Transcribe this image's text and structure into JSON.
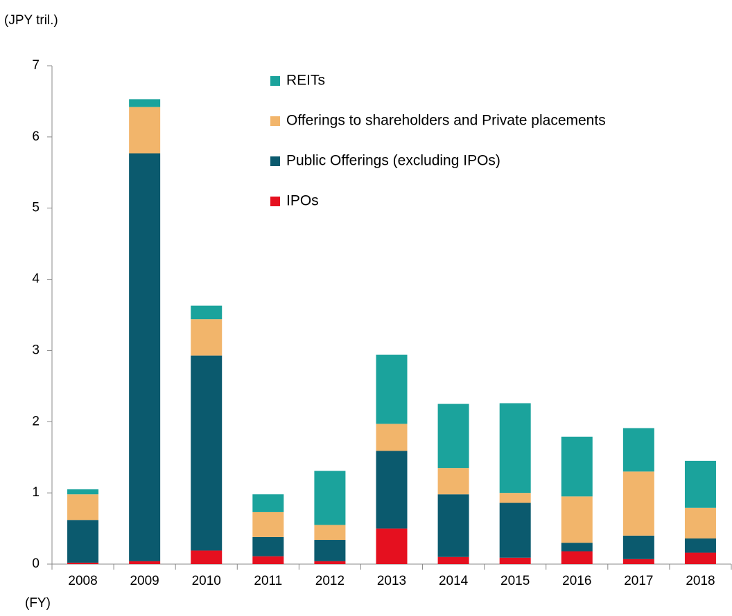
{
  "chart_data": {
    "type": "stacked_bar",
    "y_axis_label": "(JPY tril.)",
    "x_axis_label": "(FY)",
    "categories": [
      "2008",
      "2009",
      "2010",
      "2011",
      "2012",
      "2013",
      "2014",
      "2015",
      "2016",
      "2017",
      "2018"
    ],
    "series": [
      {
        "name": "REITs",
        "color": "#1ba39c",
        "values": [
          0.07,
          0.11,
          0.19,
          0.25,
          0.76,
          0.97,
          0.9,
          1.26,
          0.84,
          0.61,
          0.66
        ]
      },
      {
        "name": "Offerings to shareholders and Private placements",
        "color": "#f2b56b",
        "values": [
          0.36,
          0.65,
          0.51,
          0.35,
          0.21,
          0.38,
          0.37,
          0.14,
          0.65,
          0.9,
          0.43
        ]
      },
      {
        "name": "Public Offerings (excluding IPOs)",
        "color": "#0b5a6e",
        "values": [
          0.6,
          5.73,
          2.74,
          0.27,
          0.3,
          1.09,
          0.88,
          0.77,
          0.12,
          0.33,
          0.2
        ]
      },
      {
        "name": "IPOs",
        "color": "#e5101f",
        "values": [
          0.02,
          0.04,
          0.19,
          0.11,
          0.04,
          0.5,
          0.1,
          0.09,
          0.18,
          0.07,
          0.16
        ]
      }
    ],
    "stack_order": "bottom_up_reverse_legend",
    "ylim": [
      0,
      7
    ],
    "yticks": [
      0,
      1,
      2,
      3,
      4,
      5,
      6,
      7
    ],
    "grid": false,
    "legend": "top-right"
  }
}
